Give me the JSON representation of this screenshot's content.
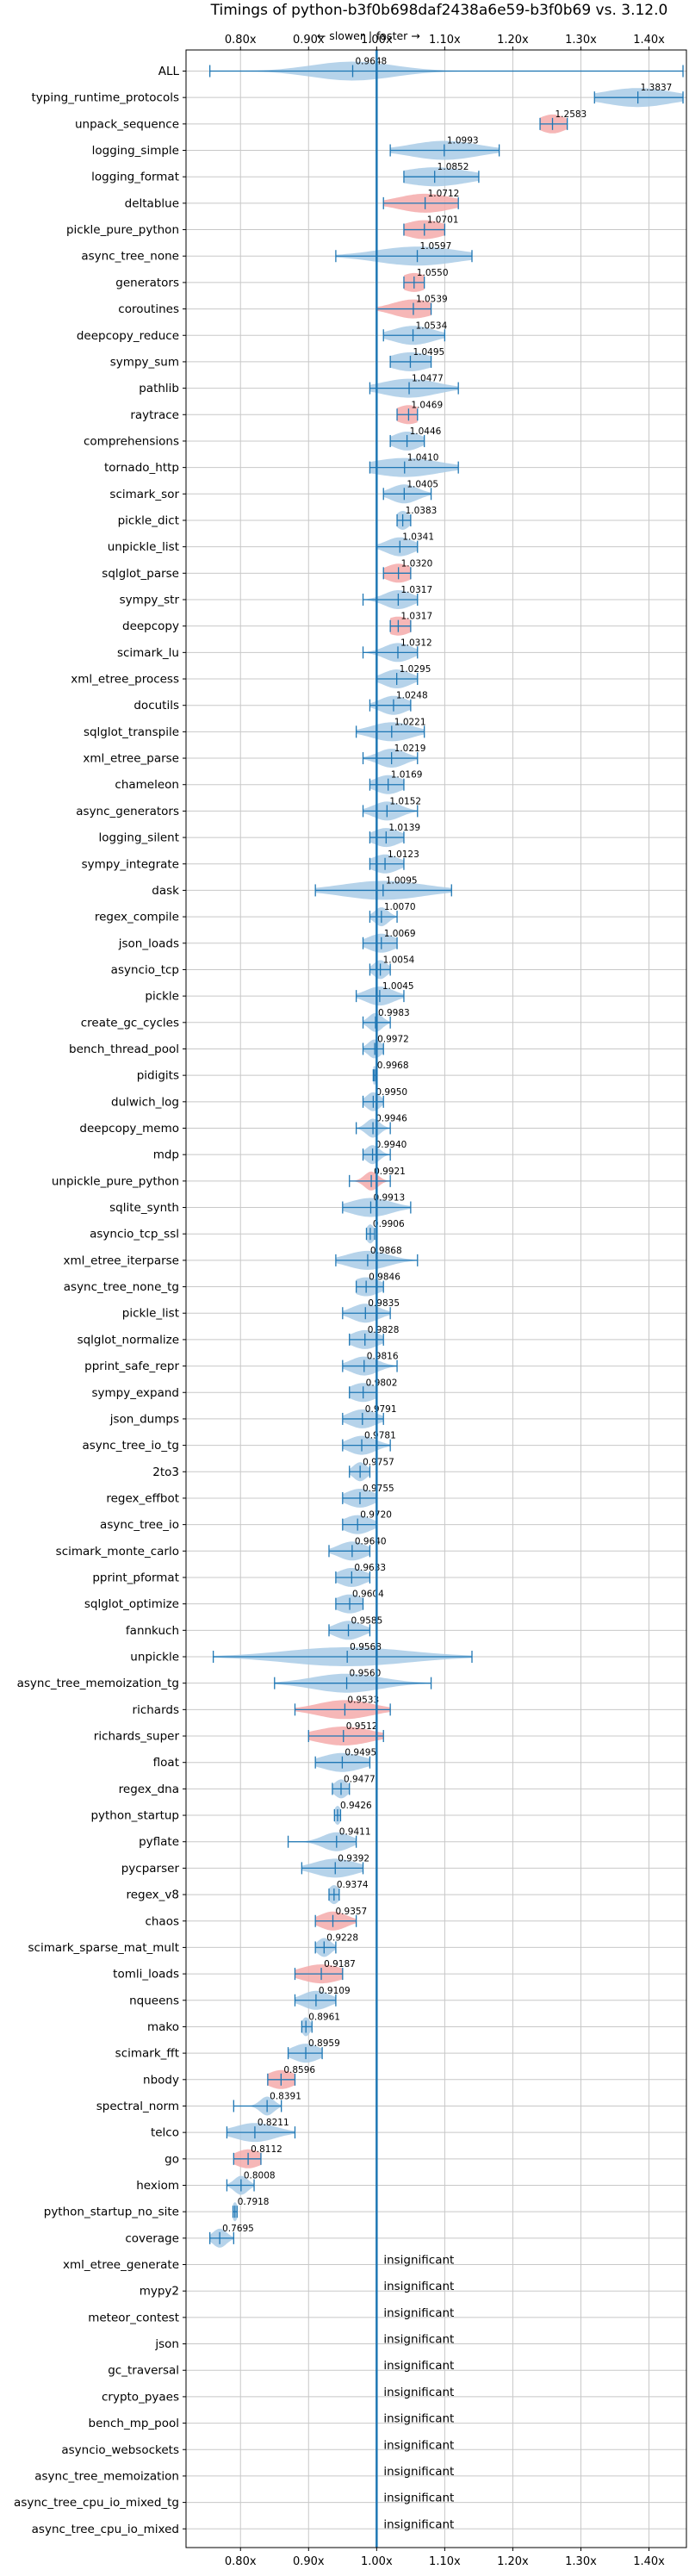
{
  "chart_data": {
    "type": "violin",
    "title": "Timings of python-b3f0b698daf2438a6e59-b3f0b69 vs. 3.12.0",
    "direction_labels": {
      "slower": "← slower",
      "separator": "|",
      "faster": "faster →"
    },
    "xlim": [
      0.72,
      1.455
    ],
    "xticks": [
      0.8,
      0.9,
      1.0,
      1.1,
      1.2,
      1.3,
      1.4
    ],
    "xtick_labels": [
      "0.80x",
      "0.90x",
      "1.00x",
      "1.10x",
      "1.20x",
      "1.30x",
      "1.40x"
    ],
    "reference_line": 1.0,
    "insignificant_text": "insignificant",
    "colors": {
      "faster": "#a9cbe6",
      "slower": "#f4aaaa",
      "line": "#1f77b4",
      "grid": "#c8c8c8"
    },
    "benchmarks": [
      {
        "name": "ALL",
        "value": 0.9648,
        "label": "0.9648",
        "lo": 0.755,
        "hi": 1.45,
        "spread": 0.06,
        "status": "faster"
      },
      {
        "name": "typing_runtime_protocols",
        "value": 1.3837,
        "label": "1.3837",
        "lo": 1.32,
        "hi": 1.45,
        "spread": 0.05,
        "status": "faster"
      },
      {
        "name": "unpack_sequence",
        "value": 1.2583,
        "label": "1.2583",
        "lo": 1.24,
        "hi": 1.28,
        "spread": 0.02,
        "status": "slower"
      },
      {
        "name": "logging_simple",
        "value": 1.0993,
        "label": "1.0993",
        "lo": 1.02,
        "hi": 1.18,
        "spread": 0.05,
        "status": "faster"
      },
      {
        "name": "logging_format",
        "value": 1.0852,
        "label": "1.0852",
        "lo": 1.04,
        "hi": 1.15,
        "spread": 0.05,
        "status": "faster"
      },
      {
        "name": "deltablue",
        "value": 1.0712,
        "label": "1.0712",
        "lo": 1.01,
        "hi": 1.12,
        "spread": 0.04,
        "status": "slower"
      },
      {
        "name": "pickle_pure_python",
        "value": 1.0701,
        "label": "1.0701",
        "lo": 1.04,
        "hi": 1.1,
        "spread": 0.03,
        "status": "slower"
      },
      {
        "name": "async_tree_none",
        "value": 1.0597,
        "label": "1.0597",
        "lo": 0.94,
        "hi": 1.14,
        "spread": 0.06,
        "status": "faster"
      },
      {
        "name": "generators",
        "value": 1.055,
        "label": "1.0550",
        "lo": 1.04,
        "hi": 1.07,
        "spread": 0.02,
        "status": "slower"
      },
      {
        "name": "coroutines",
        "value": 1.0539,
        "label": "1.0539",
        "lo": 1.0,
        "hi": 1.08,
        "spread": 0.03,
        "status": "slower"
      },
      {
        "name": "deepcopy_reduce",
        "value": 1.0534,
        "label": "1.0534",
        "lo": 1.01,
        "hi": 1.1,
        "spread": 0.03,
        "status": "faster"
      },
      {
        "name": "sympy_sum",
        "value": 1.0495,
        "label": "1.0495",
        "lo": 1.02,
        "hi": 1.08,
        "spread": 0.03,
        "status": "faster"
      },
      {
        "name": "pathlib",
        "value": 1.0477,
        "label": "1.0477",
        "lo": 0.99,
        "hi": 1.12,
        "spread": 0.04,
        "status": "faster"
      },
      {
        "name": "raytrace",
        "value": 1.0469,
        "label": "1.0469",
        "lo": 1.03,
        "hi": 1.06,
        "spread": 0.02,
        "status": "slower"
      },
      {
        "name": "comprehensions",
        "value": 1.0446,
        "label": "1.0446",
        "lo": 1.02,
        "hi": 1.07,
        "spread": 0.02,
        "status": "faster"
      },
      {
        "name": "tornado_http",
        "value": 1.041,
        "label": "1.0410",
        "lo": 0.99,
        "hi": 1.12,
        "spread": 0.05,
        "status": "faster"
      },
      {
        "name": "scimark_sor",
        "value": 1.0405,
        "label": "1.0405",
        "lo": 1.01,
        "hi": 1.08,
        "spread": 0.02,
        "status": "faster"
      },
      {
        "name": "pickle_dict",
        "value": 1.0383,
        "label": "1.0383",
        "lo": 1.03,
        "hi": 1.05,
        "spread": 0.01,
        "status": "faster"
      },
      {
        "name": "unpickle_list",
        "value": 1.0341,
        "label": "1.0341",
        "lo": 1.0,
        "hi": 1.06,
        "spread": 0.02,
        "status": "faster"
      },
      {
        "name": "sqlglot_parse",
        "value": 1.032,
        "label": "1.0320",
        "lo": 1.01,
        "hi": 1.05,
        "spread": 0.02,
        "status": "slower"
      },
      {
        "name": "sympy_str",
        "value": 1.0317,
        "label": "1.0317",
        "lo": 0.98,
        "hi": 1.06,
        "spread": 0.02,
        "status": "faster"
      },
      {
        "name": "deepcopy",
        "value": 1.0317,
        "label": "1.0317",
        "lo": 1.02,
        "hi": 1.05,
        "spread": 0.02,
        "status": "slower"
      },
      {
        "name": "scimark_lu",
        "value": 1.0312,
        "label": "1.0312",
        "lo": 0.98,
        "hi": 1.06,
        "spread": 0.02,
        "status": "faster"
      },
      {
        "name": "xml_etree_process",
        "value": 1.0295,
        "label": "1.0295",
        "lo": 1.0,
        "hi": 1.06,
        "spread": 0.02,
        "status": "faster"
      },
      {
        "name": "docutils",
        "value": 1.0248,
        "label": "1.0248",
        "lo": 0.99,
        "hi": 1.05,
        "spread": 0.02,
        "status": "faster"
      },
      {
        "name": "sqlglot_transpile",
        "value": 1.0221,
        "label": "1.0221",
        "lo": 0.97,
        "hi": 1.07,
        "spread": 0.03,
        "status": "faster"
      },
      {
        "name": "xml_etree_parse",
        "value": 1.0219,
        "label": "1.0219",
        "lo": 0.98,
        "hi": 1.06,
        "spread": 0.02,
        "status": "faster"
      },
      {
        "name": "chameleon",
        "value": 1.0169,
        "label": "1.0169",
        "lo": 0.99,
        "hi": 1.04,
        "spread": 0.02,
        "status": "faster"
      },
      {
        "name": "async_generators",
        "value": 1.0152,
        "label": "1.0152",
        "lo": 0.98,
        "hi": 1.06,
        "spread": 0.02,
        "status": "faster"
      },
      {
        "name": "logging_silent",
        "value": 1.0139,
        "label": "1.0139",
        "lo": 0.99,
        "hi": 1.04,
        "spread": 0.02,
        "status": "faster"
      },
      {
        "name": "sympy_integrate",
        "value": 1.0123,
        "label": "1.0123",
        "lo": 0.99,
        "hi": 1.04,
        "spread": 0.02,
        "status": "faster"
      },
      {
        "name": "dask",
        "value": 1.0095,
        "label": "1.0095",
        "lo": 0.91,
        "hi": 1.11,
        "spread": 0.06,
        "status": "faster"
      },
      {
        "name": "regex_compile",
        "value": 1.007,
        "label": "1.0070",
        "lo": 0.99,
        "hi": 1.03,
        "spread": 0.01,
        "status": "faster"
      },
      {
        "name": "json_loads",
        "value": 1.0069,
        "label": "1.0069",
        "lo": 0.98,
        "hi": 1.03,
        "spread": 0.02,
        "status": "faster"
      },
      {
        "name": "asyncio_tcp",
        "value": 1.0054,
        "label": "1.0054",
        "lo": 0.99,
        "hi": 1.02,
        "spread": 0.01,
        "status": "faster"
      },
      {
        "name": "pickle",
        "value": 1.0045,
        "label": "1.0045",
        "lo": 0.97,
        "hi": 1.04,
        "spread": 0.02,
        "status": "faster"
      },
      {
        "name": "create_gc_cycles",
        "value": 0.9983,
        "label": "0.9983",
        "lo": 0.98,
        "hi": 1.02,
        "spread": 0.01,
        "status": "faster"
      },
      {
        "name": "bench_thread_pool",
        "value": 0.9972,
        "label": "0.9972",
        "lo": 0.98,
        "hi": 1.01,
        "spread": 0.01,
        "status": "faster"
      },
      {
        "name": "pidigits",
        "value": 0.9968,
        "label": "0.9968",
        "lo": 0.995,
        "hi": 0.999,
        "spread": 0.003,
        "status": "faster"
      },
      {
        "name": "dulwich_log",
        "value": 0.995,
        "label": "0.9950",
        "lo": 0.98,
        "hi": 1.01,
        "spread": 0.01,
        "status": "faster"
      },
      {
        "name": "deepcopy_memo",
        "value": 0.9946,
        "label": "0.9946",
        "lo": 0.97,
        "hi": 1.02,
        "spread": 0.01,
        "status": "faster"
      },
      {
        "name": "mdp",
        "value": 0.994,
        "label": "0.9940",
        "lo": 0.98,
        "hi": 1.02,
        "spread": 0.01,
        "status": "faster"
      },
      {
        "name": "unpickle_pure_python",
        "value": 0.9921,
        "label": "0.9921",
        "lo": 0.96,
        "hi": 1.02,
        "spread": 0.01,
        "status": "slower"
      },
      {
        "name": "sqlite_synth",
        "value": 0.9913,
        "label": "0.9913",
        "lo": 0.95,
        "hi": 1.05,
        "spread": 0.03,
        "status": "faster"
      },
      {
        "name": "asyncio_tcp_ssl",
        "value": 0.9906,
        "label": "0.9906",
        "lo": 0.985,
        "hi": 0.997,
        "spread": 0.006,
        "status": "faster"
      },
      {
        "name": "xml_etree_iterparse",
        "value": 0.9868,
        "label": "0.9868",
        "lo": 0.94,
        "hi": 1.06,
        "spread": 0.03,
        "status": "faster"
      },
      {
        "name": "async_tree_none_tg",
        "value": 0.9846,
        "label": "0.9846",
        "lo": 0.97,
        "hi": 1.01,
        "spread": 0.02,
        "status": "faster"
      },
      {
        "name": "pickle_list",
        "value": 0.9835,
        "label": "0.9835",
        "lo": 0.95,
        "hi": 1.02,
        "spread": 0.02,
        "status": "faster"
      },
      {
        "name": "sqlglot_normalize",
        "value": 0.9828,
        "label": "0.9828",
        "lo": 0.96,
        "hi": 1.01,
        "spread": 0.02,
        "status": "faster"
      },
      {
        "name": "pprint_safe_repr",
        "value": 0.9816,
        "label": "0.9816",
        "lo": 0.95,
        "hi": 1.03,
        "spread": 0.02,
        "status": "faster"
      },
      {
        "name": "sympy_expand",
        "value": 0.9802,
        "label": "0.9802",
        "lo": 0.96,
        "hi": 1.0,
        "spread": 0.02,
        "status": "faster"
      },
      {
        "name": "json_dumps",
        "value": 0.9791,
        "label": "0.9791",
        "lo": 0.95,
        "hi": 1.01,
        "spread": 0.02,
        "status": "faster"
      },
      {
        "name": "async_tree_io_tg",
        "value": 0.9781,
        "label": "0.9781",
        "lo": 0.95,
        "hi": 1.02,
        "spread": 0.02,
        "status": "faster"
      },
      {
        "name": "2to3",
        "value": 0.9757,
        "label": "0.9757",
        "lo": 0.96,
        "hi": 0.99,
        "spread": 0.01,
        "status": "faster"
      },
      {
        "name": "regex_effbot",
        "value": 0.9755,
        "label": "0.9755",
        "lo": 0.95,
        "hi": 1.0,
        "spread": 0.02,
        "status": "faster"
      },
      {
        "name": "async_tree_io",
        "value": 0.972,
        "label": "0.9720",
        "lo": 0.95,
        "hi": 1.0,
        "spread": 0.02,
        "status": "faster"
      },
      {
        "name": "scimark_monte_carlo",
        "value": 0.964,
        "label": "0.9640",
        "lo": 0.93,
        "hi": 0.99,
        "spread": 0.02,
        "status": "faster"
      },
      {
        "name": "pprint_pformat",
        "value": 0.9633,
        "label": "0.9633",
        "lo": 0.94,
        "hi": 0.99,
        "spread": 0.02,
        "status": "faster"
      },
      {
        "name": "sqlglot_optimize",
        "value": 0.9604,
        "label": "0.9604",
        "lo": 0.94,
        "hi": 0.98,
        "spread": 0.02,
        "status": "faster"
      },
      {
        "name": "fannkuch",
        "value": 0.9585,
        "label": "0.9585",
        "lo": 0.93,
        "hi": 0.99,
        "spread": 0.02,
        "status": "faster"
      },
      {
        "name": "unpickle",
        "value": 0.9568,
        "label": "0.9568",
        "lo": 0.76,
        "hi": 1.14,
        "spread": 0.09,
        "status": "faster"
      },
      {
        "name": "async_tree_memoization_tg",
        "value": 0.956,
        "label": "0.9560",
        "lo": 0.85,
        "hi": 1.08,
        "spread": 0.05,
        "status": "faster"
      },
      {
        "name": "richards",
        "value": 0.9533,
        "label": "0.9533",
        "lo": 0.88,
        "hi": 1.02,
        "spread": 0.04,
        "status": "slower"
      },
      {
        "name": "richards_super",
        "value": 0.9512,
        "label": "0.9512",
        "lo": 0.9,
        "hi": 1.01,
        "spread": 0.04,
        "status": "slower"
      },
      {
        "name": "float",
        "value": 0.9495,
        "label": "0.9495",
        "lo": 0.91,
        "hi": 0.99,
        "spread": 0.03,
        "status": "faster"
      },
      {
        "name": "regex_dna",
        "value": 0.9477,
        "label": "0.9477",
        "lo": 0.935,
        "hi": 0.96,
        "spread": 0.01,
        "status": "faster"
      },
      {
        "name": "python_startup",
        "value": 0.9426,
        "label": "0.9426",
        "lo": 0.938,
        "hi": 0.947,
        "spread": 0.005,
        "status": "faster"
      },
      {
        "name": "pyflate",
        "value": 0.9411,
        "label": "0.9411",
        "lo": 0.87,
        "hi": 0.97,
        "spread": 0.02,
        "status": "faster"
      },
      {
        "name": "pycparser",
        "value": 0.9392,
        "label": "0.9392",
        "lo": 0.89,
        "hi": 0.98,
        "spread": 0.03,
        "status": "faster"
      },
      {
        "name": "regex_v8",
        "value": 0.9374,
        "label": "0.9374",
        "lo": 0.93,
        "hi": 0.945,
        "spread": 0.008,
        "status": "faster"
      },
      {
        "name": "chaos",
        "value": 0.9357,
        "label": "0.9357",
        "lo": 0.91,
        "hi": 0.97,
        "spread": 0.02,
        "status": "slower"
      },
      {
        "name": "scimark_sparse_mat_mult",
        "value": 0.9228,
        "label": "0.9228",
        "lo": 0.91,
        "hi": 0.94,
        "spread": 0.01,
        "status": "faster"
      },
      {
        "name": "tomli_loads",
        "value": 0.9187,
        "label": "0.9187",
        "lo": 0.88,
        "hi": 0.95,
        "spread": 0.03,
        "status": "slower"
      },
      {
        "name": "nqueens",
        "value": 0.9109,
        "label": "0.9109",
        "lo": 0.88,
        "hi": 0.94,
        "spread": 0.02,
        "status": "faster"
      },
      {
        "name": "mako",
        "value": 0.8961,
        "label": "0.8961",
        "lo": 0.89,
        "hi": 0.905,
        "spread": 0.006,
        "status": "faster"
      },
      {
        "name": "scimark_fft",
        "value": 0.8959,
        "label": "0.8959",
        "lo": 0.87,
        "hi": 0.92,
        "spread": 0.02,
        "status": "faster"
      },
      {
        "name": "nbody",
        "value": 0.8596,
        "label": "0.8596",
        "lo": 0.84,
        "hi": 0.88,
        "spread": 0.02,
        "status": "slower"
      },
      {
        "name": "spectral_norm",
        "value": 0.8391,
        "label": "0.8391",
        "lo": 0.79,
        "hi": 0.86,
        "spread": 0.01,
        "status": "faster"
      },
      {
        "name": "telco",
        "value": 0.8211,
        "label": "0.8211",
        "lo": 0.78,
        "hi": 0.88,
        "spread": 0.03,
        "status": "faster"
      },
      {
        "name": "go",
        "value": 0.8112,
        "label": "0.8112",
        "lo": 0.79,
        "hi": 0.83,
        "spread": 0.02,
        "status": "slower"
      },
      {
        "name": "hexiom",
        "value": 0.8008,
        "label": "0.8008",
        "lo": 0.78,
        "hi": 0.82,
        "spread": 0.01,
        "status": "faster"
      },
      {
        "name": "python_startup_no_site",
        "value": 0.7918,
        "label": "0.7918",
        "lo": 0.789,
        "hi": 0.795,
        "spread": 0.004,
        "status": "faster"
      },
      {
        "name": "coverage",
        "value": 0.7695,
        "label": "0.7695",
        "lo": 0.755,
        "hi": 0.79,
        "spread": 0.01,
        "status": "faster"
      },
      {
        "name": "xml_etree_generate",
        "status": "insignificant"
      },
      {
        "name": "mypy2",
        "status": "insignificant"
      },
      {
        "name": "meteor_contest",
        "status": "insignificant"
      },
      {
        "name": "json",
        "status": "insignificant"
      },
      {
        "name": "gc_traversal",
        "status": "insignificant"
      },
      {
        "name": "crypto_pyaes",
        "status": "insignificant"
      },
      {
        "name": "bench_mp_pool",
        "status": "insignificant"
      },
      {
        "name": "asyncio_websockets",
        "status": "insignificant"
      },
      {
        "name": "async_tree_memoization",
        "status": "insignificant"
      },
      {
        "name": "async_tree_cpu_io_mixed_tg",
        "status": "insignificant"
      },
      {
        "name": "async_tree_cpu_io_mixed",
        "status": "insignificant"
      }
    ]
  }
}
